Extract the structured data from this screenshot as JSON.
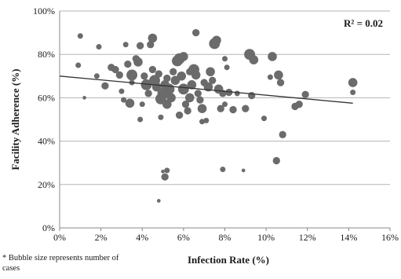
{
  "chart_data": {
    "type": "scatter",
    "subtype": "bubble",
    "xlabel": "Infection Rate (%)",
    "ylabel": "Facility Adherence (%)",
    "xlim": [
      0,
      16
    ],
    "ylim": [
      0,
      100
    ],
    "x_ticks": [
      "0%",
      "2%",
      "4%",
      "6%",
      "8%",
      "10%",
      "12%",
      "14%",
      "16%"
    ],
    "y_ticks": [
      "0%",
      "20%",
      "40%",
      "60%",
      "80%",
      "100%"
    ],
    "grid": "horizontal",
    "annotation": "R² = 0.02",
    "footnote": "* Bubble size represents number of cases",
    "trendline": {
      "x": [
        0,
        14.2
      ],
      "y": [
        70.0,
        57.5
      ]
    },
    "colors": {
      "points": "#6b6b6b",
      "trendline": "#333333",
      "grid": "#b5b5b5",
      "axis": "#888888"
    },
    "points": [
      {
        "x": 1.0,
        "y": 88.5,
        "size": 2
      },
      {
        "x": 1.9,
        "y": 83.5,
        "size": 2
      },
      {
        "x": 0.9,
        "y": 75,
        "size": 2
      },
      {
        "x": 1.2,
        "y": 60,
        "size": 1
      },
      {
        "x": 1.8,
        "y": 70,
        "size": 2
      },
      {
        "x": 2.2,
        "y": 65.5,
        "size": 3
      },
      {
        "x": 2.5,
        "y": 74,
        "size": 3
      },
      {
        "x": 2.7,
        "y": 73,
        "size": 3
      },
      {
        "x": 2.9,
        "y": 70.5,
        "size": 3
      },
      {
        "x": 3.0,
        "y": 63,
        "size": 2
      },
      {
        "x": 3.1,
        "y": 59,
        "size": 2
      },
      {
        "x": 3.3,
        "y": 75.5,
        "size": 3
      },
      {
        "x": 3.5,
        "y": 70.5,
        "size": 5
      },
      {
        "x": 3.4,
        "y": 57.5,
        "size": 4
      },
      {
        "x": 3.2,
        "y": 84.5,
        "size": 2
      },
      {
        "x": 3.7,
        "y": 78,
        "size": 3
      },
      {
        "x": 3.8,
        "y": 76.5,
        "size": 4
      },
      {
        "x": 3.9,
        "y": 84,
        "size": 3
      },
      {
        "x": 3.5,
        "y": 67,
        "size": 2
      },
      {
        "x": 4.1,
        "y": 70,
        "size": 3
      },
      {
        "x": 4.2,
        "y": 66,
        "size": 5
      },
      {
        "x": 4.0,
        "y": 57,
        "size": 2
      },
      {
        "x": 3.9,
        "y": 50,
        "size": 2
      },
      {
        "x": 4.3,
        "y": 62,
        "size": 3
      },
      {
        "x": 4.4,
        "y": 84.5,
        "size": 3
      },
      {
        "x": 4.5,
        "y": 87.5,
        "size": 4
      },
      {
        "x": 4.5,
        "y": 73,
        "size": 3
      },
      {
        "x": 4.6,
        "y": 68,
        "size": 5
      },
      {
        "x": 4.7,
        "y": 65,
        "size": 4
      },
      {
        "x": 4.8,
        "y": 71,
        "size": 3
      },
      {
        "x": 4.9,
        "y": 59.5,
        "size": 5
      },
      {
        "x": 4.9,
        "y": 51,
        "size": 2
      },
      {
        "x": 5.0,
        "y": 62,
        "size": 5
      },
      {
        "x": 5.1,
        "y": 66,
        "size": 4
      },
      {
        "x": 5.2,
        "y": 69,
        "size": 3
      },
      {
        "x": 5.2,
        "y": 57,
        "size": 4
      },
      {
        "x": 5.3,
        "y": 64,
        "size": 5
      },
      {
        "x": 5.4,
        "y": 60,
        "size": 4
      },
      {
        "x": 5.5,
        "y": 72,
        "size": 3
      },
      {
        "x": 5.6,
        "y": 68,
        "size": 4
      },
      {
        "x": 5.7,
        "y": 77,
        "size": 5
      },
      {
        "x": 5.8,
        "y": 78,
        "size": 5
      },
      {
        "x": 5.9,
        "y": 70,
        "size": 4
      },
      {
        "x": 6.0,
        "y": 79,
        "size": 4
      },
      {
        "x": 6.0,
        "y": 64,
        "size": 5
      },
      {
        "x": 6.1,
        "y": 57,
        "size": 3
      },
      {
        "x": 6.2,
        "y": 54,
        "size": 3
      },
      {
        "x": 6.3,
        "y": 60,
        "size": 4
      },
      {
        "x": 6.3,
        "y": 72,
        "size": 3
      },
      {
        "x": 6.4,
        "y": 66,
        "size": 4
      },
      {
        "x": 6.5,
        "y": 73,
        "size": 5
      },
      {
        "x": 6.6,
        "y": 70.5,
        "size": 4
      },
      {
        "x": 6.6,
        "y": 90,
        "size": 3
      },
      {
        "x": 6.7,
        "y": 62,
        "size": 3
      },
      {
        "x": 6.8,
        "y": 59,
        "size": 3
      },
      {
        "x": 6.9,
        "y": 55,
        "size": 4
      },
      {
        "x": 6.9,
        "y": 49,
        "size": 2
      },
      {
        "x": 7.0,
        "y": 67,
        "size": 3
      },
      {
        "x": 7.1,
        "y": 49.5,
        "size": 2
      },
      {
        "x": 7.2,
        "y": 65,
        "size": 4
      },
      {
        "x": 7.3,
        "y": 72,
        "size": 4
      },
      {
        "x": 7.4,
        "y": 68,
        "size": 3
      },
      {
        "x": 7.5,
        "y": 85,
        "size": 5
      },
      {
        "x": 7.6,
        "y": 86.5,
        "size": 4
      },
      {
        "x": 7.7,
        "y": 64,
        "size": 4
      },
      {
        "x": 7.9,
        "y": 62,
        "size": 3
      },
      {
        "x": 8.0,
        "y": 78,
        "size": 2
      },
      {
        "x": 7.8,
        "y": 55,
        "size": 3
      },
      {
        "x": 8.0,
        "y": 57,
        "size": 2
      },
      {
        "x": 8.1,
        "y": 74,
        "size": 2
      },
      {
        "x": 7.9,
        "y": 27,
        "size": 2
      },
      {
        "x": 8.2,
        "y": 62.5,
        "size": 3
      },
      {
        "x": 8.4,
        "y": 54.5,
        "size": 3
      },
      {
        "x": 8.6,
        "y": 62,
        "size": 2
      },
      {
        "x": 8.9,
        "y": 26.5,
        "size": 1
      },
      {
        "x": 9.0,
        "y": 55,
        "size": 3
      },
      {
        "x": 9.2,
        "y": 80,
        "size": 5
      },
      {
        "x": 9.3,
        "y": 61,
        "size": 3
      },
      {
        "x": 9.4,
        "y": 77.5,
        "size": 4
      },
      {
        "x": 9.9,
        "y": 50.5,
        "size": 2
      },
      {
        "x": 10.2,
        "y": 69.5,
        "size": 2
      },
      {
        "x": 10.3,
        "y": 79,
        "size": 4
      },
      {
        "x": 10.5,
        "y": 31,
        "size": 3
      },
      {
        "x": 10.6,
        "y": 70.5,
        "size": 4
      },
      {
        "x": 10.7,
        "y": 67,
        "size": 3
      },
      {
        "x": 10.8,
        "y": 43,
        "size": 3
      },
      {
        "x": 11.4,
        "y": 56,
        "size": 3
      },
      {
        "x": 11.6,
        "y": 57,
        "size": 3
      },
      {
        "x": 11.9,
        "y": 61.5,
        "size": 3
      },
      {
        "x": 14.2,
        "y": 67,
        "size": 4
      },
      {
        "x": 14.2,
        "y": 62.5,
        "size": 2
      },
      {
        "x": 5.1,
        "y": 23.5,
        "size": 3
      },
      {
        "x": 5.2,
        "y": 26.5,
        "size": 2
      },
      {
        "x": 5.0,
        "y": 26,
        "size": 1
      },
      {
        "x": 4.8,
        "y": 12.5,
        "size": 1
      },
      {
        "x": 5.8,
        "y": 52,
        "size": 3
      }
    ]
  }
}
